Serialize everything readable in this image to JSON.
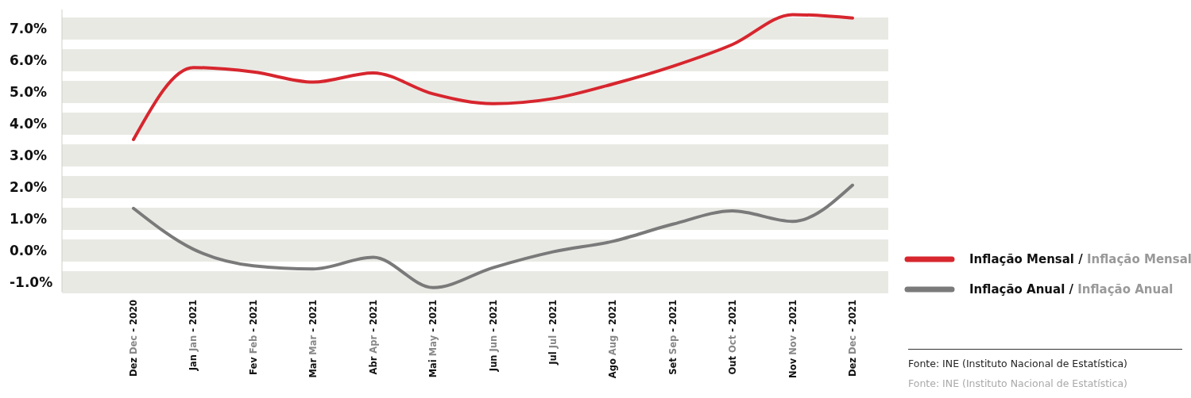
{
  "chart_data": {
    "type": "line",
    "categories": [
      "Dez Dec - 2020",
      "Jan Jan - 2021",
      "Fev Feb - 2021",
      "Mar Mar - 2021",
      "Abr Apr - 2021",
      "Mai May - 2021",
      "Jun Jun - 2021",
      "Jul Jul - 2021",
      "Ago Aug - 2021",
      "Set Sep - 2021",
      "Out Oct - 2021",
      "Nov Nov - 2021",
      "Dez Dec - 2021"
    ],
    "series": [
      {
        "name": "Inflação Mensal / Inflação Mensal",
        "color": "#d7262e",
        "values": [
          3.5,
          5.77,
          5.63,
          5.31,
          5.6,
          4.94,
          4.63,
          4.79,
          5.25,
          5.81,
          6.5,
          7.44,
          7.33
        ]
      },
      {
        "name": "Inflação Anual / Inflação Anual",
        "color": "#7a7a7a",
        "values": [
          1.33,
          0.04,
          -0.48,
          -0.58,
          -0.21,
          -1.17,
          -0.54,
          -0.04,
          0.29,
          0.83,
          1.25,
          0.92,
          2.06
        ]
      }
    ],
    "ylim": [
      -1.3,
      7.6
    ],
    "yticks": [
      {
        "value": -1,
        "label": "-1.0%"
      },
      {
        "value": 0,
        "label": "0.0%"
      },
      {
        "value": 1,
        "label": "1.0%"
      },
      {
        "value": 2,
        "label": "2.0%"
      },
      {
        "value": 3,
        "label": "3.0%"
      },
      {
        "value": 4,
        "label": "4.0%"
      },
      {
        "value": 5,
        "label": "5.0%"
      },
      {
        "value": 6,
        "label": "6.0%"
      },
      {
        "value": 7,
        "label": "7.0%"
      }
    ],
    "grid": "y",
    "legend": "right",
    "marker": "none",
    "line_style": "solid",
    "annotations": [
      "Fonte: INE (Instituto Nacional de Estatística)",
      "Fonte: INE (Instituto Nacional de Estatística)"
    ]
  }
}
